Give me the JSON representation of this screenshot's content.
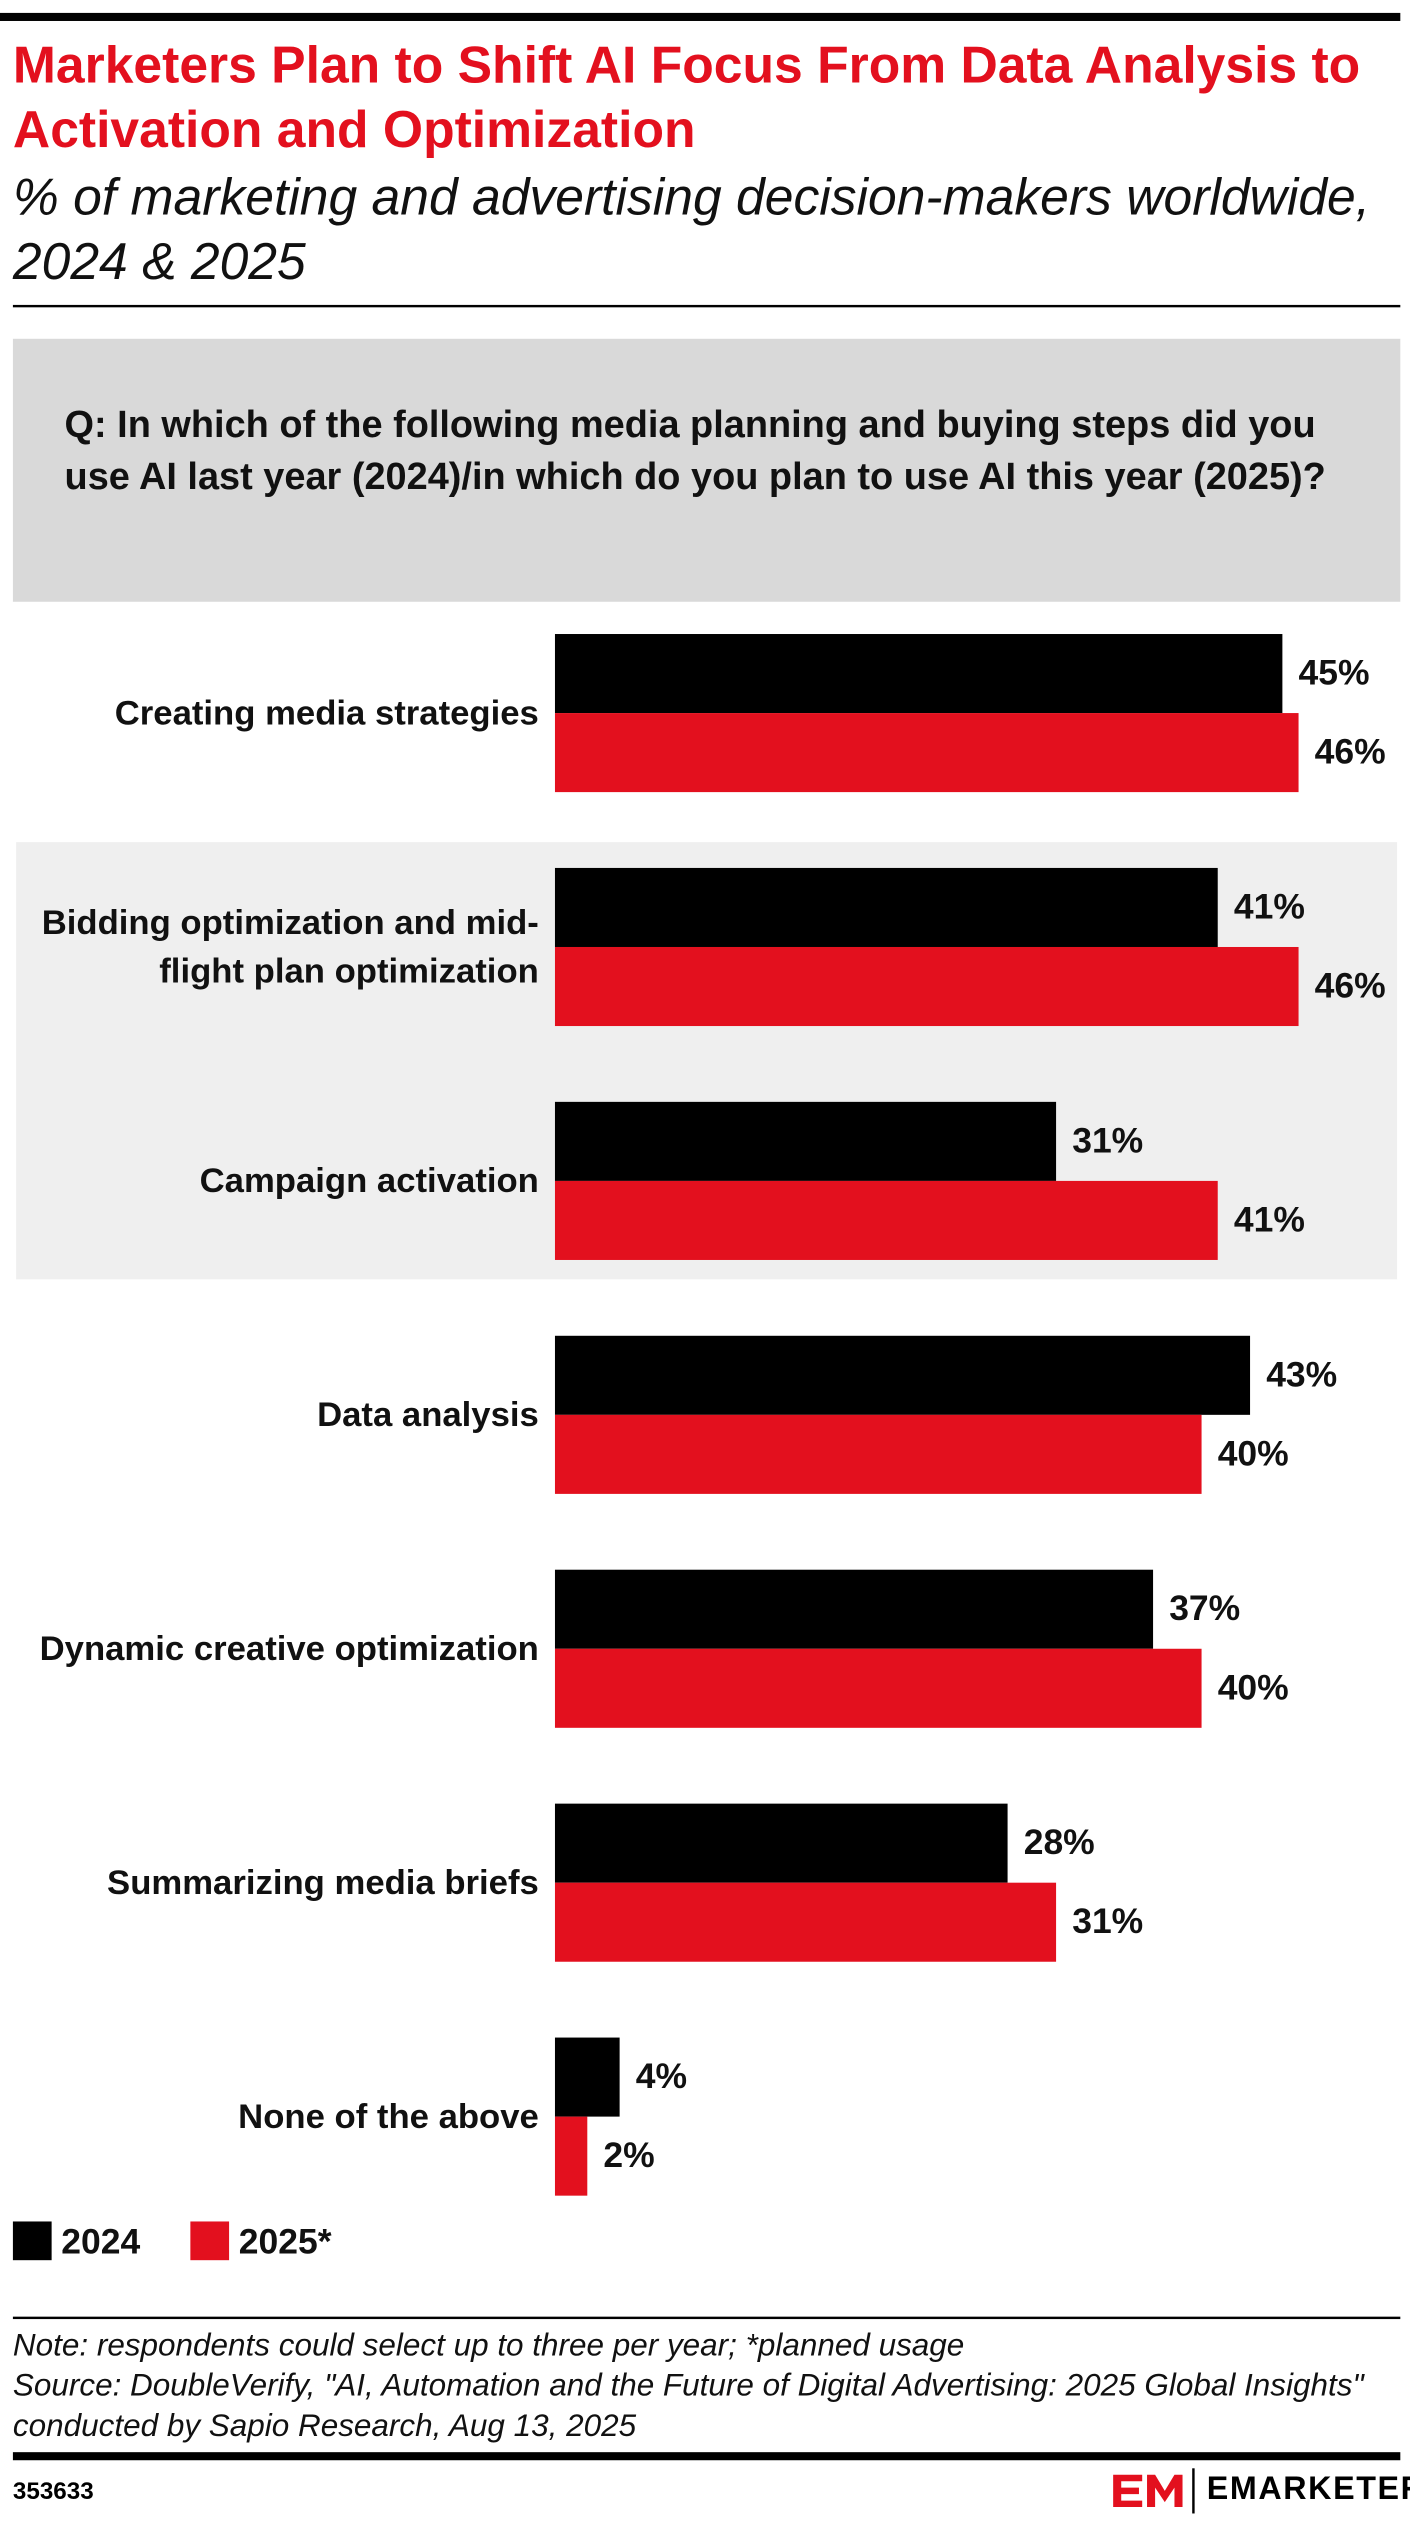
{
  "chart_data": {
    "type": "bar",
    "title": "Marketers Plan to Shift AI Focus From Data Analysis to Activation and Optimization",
    "subtitle": "% of marketing and advertising decision-makers worldwide, 2024 & 2025",
    "question": "Q: In which of the following media planning and buying steps did you use AI last year (2024)/in which do you plan to use AI this year (2025)?",
    "categories": [
      "Creating media strategies",
      "Bidding optimization and mid-flight plan optimization",
      "Campaign activation",
      "Data analysis",
      "Dynamic creative optimization",
      "Summarizing media briefs",
      "None of the above"
    ],
    "series": [
      {
        "name": "2024",
        "color": "#000000",
        "values": [
          45,
          41,
          31,
          43,
          37,
          28,
          4
        ],
        "value_labels": [
          "45%",
          "41%",
          "31%",
          "43%",
          "37%",
          "28%",
          "4%"
        ]
      },
      {
        "name": "2025*",
        "color": "#e3101e",
        "values": [
          46,
          46,
          41,
          40,
          40,
          31,
          2
        ],
        "value_labels": [
          "46%",
          "46%",
          "41%",
          "40%",
          "40%",
          "31%",
          "2%"
        ]
      }
    ],
    "note": "Note: respondents could select up to three per year; *planned usage",
    "source": "Source: DoubleVerify, \"AI, Automation and the Future of Digital Advertising: 2025 Global Insights\" conducted by Sapio Research, Aug 13, 2025",
    "chart_id": "353633",
    "brand": "EMARKETER"
  }
}
